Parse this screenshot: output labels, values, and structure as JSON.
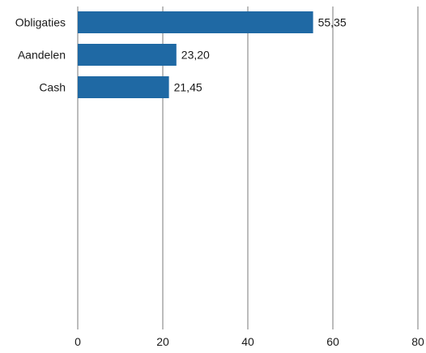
{
  "chart_data": {
    "type": "bar",
    "orientation": "horizontal",
    "categories": [
      "Obligaties",
      "Aandelen",
      "Cash"
    ],
    "values": [
      55.35,
      23.2,
      21.45
    ],
    "value_labels": [
      "55,35",
      "23,20",
      "21,45"
    ],
    "title": "",
    "xlabel": "",
    "ylabel": "",
    "xlim": [
      0,
      80
    ],
    "x_ticks": [
      0,
      20,
      40,
      60,
      80
    ],
    "x_tick_labels": [
      "0",
      "20",
      "40",
      "60",
      "80"
    ],
    "grid": "vertical",
    "legend": "none",
    "bar_color": "#1f69a4",
    "grid_color": "#a6a6a6"
  }
}
